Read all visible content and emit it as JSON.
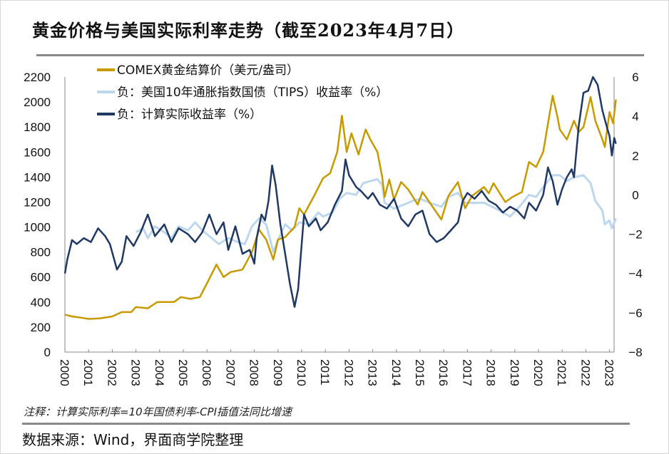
{
  "title": "黄金价格与美国实际利率走势（截至2023年4月7日）",
  "note": "注释：计算实际利率=10年国债利率-CPI插值法同比增速",
  "source": "数据来源：Wind，界面商学院整理",
  "chart_data": {
    "type": "line",
    "title": "黄金价格与美国实际利率走势（截至2023年4月7日）",
    "x_ticks": [
      "2000",
      "2001",
      "2002",
      "2003",
      "2004",
      "2005",
      "2006",
      "2007",
      "2008",
      "2009",
      "2010",
      "2011",
      "2012",
      "2013",
      "2014",
      "2015",
      "2016",
      "2017",
      "2018",
      "2019",
      "2020",
      "2021",
      "2022",
      "2023"
    ],
    "y_left": {
      "ylim": [
        0,
        2200
      ],
      "ticks": [
        "0",
        "200",
        "400",
        "600",
        "800",
        "1000",
        "1200",
        "1400",
        "1600",
        "1800",
        "2000",
        "2200"
      ]
    },
    "y_right": {
      "ylim": [
        -8,
        6
      ],
      "ticks": [
        "-8",
        "-6",
        "-4",
        "-2",
        "0",
        "2",
        "4",
        "6"
      ]
    },
    "legend_placement": "top-left",
    "series": [
      {
        "name": "COMEX黄金结算价（美元/盎司）",
        "axis": "left",
        "color": "#C89A00",
        "points": [
          [
            2000,
            300
          ],
          [
            2000.3,
            285
          ],
          [
            2000.7,
            275
          ],
          [
            2001,
            265
          ],
          [
            2001.5,
            270
          ],
          [
            2002,
            285
          ],
          [
            2002.4,
            320
          ],
          [
            2002.8,
            320
          ],
          [
            2003,
            360
          ],
          [
            2003.5,
            350
          ],
          [
            2003.9,
            400
          ],
          [
            2004.3,
            400
          ],
          [
            2004.6,
            400
          ],
          [
            2004.9,
            440
          ],
          [
            2005.3,
            425
          ],
          [
            2005.7,
            440
          ],
          [
            2006,
            550
          ],
          [
            2006.4,
            700
          ],
          [
            2006.7,
            600
          ],
          [
            2007,
            640
          ],
          [
            2007.5,
            660
          ],
          [
            2007.9,
            800
          ],
          [
            2008.2,
            980
          ],
          [
            2008.5,
            900
          ],
          [
            2008.8,
            740
          ],
          [
            2009,
            900
          ],
          [
            2009.3,
            920
          ],
          [
            2009.7,
            1000
          ],
          [
            2009.9,
            1150
          ],
          [
            2010.1,
            1100
          ],
          [
            2010.5,
            1240
          ],
          [
            2010.9,
            1390
          ],
          [
            2011.2,
            1430
          ],
          [
            2011.5,
            1600
          ],
          [
            2011.7,
            1890
          ],
          [
            2011.9,
            1600
          ],
          [
            2012.1,
            1750
          ],
          [
            2012.4,
            1580
          ],
          [
            2012.7,
            1780
          ],
          [
            2012.9,
            1700
          ],
          [
            2013.2,
            1600
          ],
          [
            2013.4,
            1400
          ],
          [
            2013.5,
            1240
          ],
          [
            2013.7,
            1380
          ],
          [
            2013.9,
            1220
          ],
          [
            2014.2,
            1360
          ],
          [
            2014.5,
            1300
          ],
          [
            2014.9,
            1180
          ],
          [
            2015.1,
            1280
          ],
          [
            2015.5,
            1170
          ],
          [
            2015.9,
            1060
          ],
          [
            2016.2,
            1250
          ],
          [
            2016.6,
            1360
          ],
          [
            2016.9,
            1150
          ],
          [
            2017.2,
            1250
          ],
          [
            2017.7,
            1320
          ],
          [
            2017.9,
            1270
          ],
          [
            2018.1,
            1350
          ],
          [
            2018.6,
            1200
          ],
          [
            2018.9,
            1240
          ],
          [
            2019.3,
            1280
          ],
          [
            2019.6,
            1520
          ],
          [
            2019.9,
            1480
          ],
          [
            2020.2,
            1600
          ],
          [
            2020.6,
            2050
          ],
          [
            2020.8,
            1880
          ],
          [
            2020.9,
            1780
          ],
          [
            2021.2,
            1700
          ],
          [
            2021.5,
            1850
          ],
          [
            2021.7,
            1760
          ],
          [
            2021.9,
            1800
          ],
          [
            2022.2,
            2040
          ],
          [
            2022.4,
            1850
          ],
          [
            2022.7,
            1700
          ],
          [
            2022.8,
            1640
          ],
          [
            2023,
            1920
          ],
          [
            2023.15,
            1830
          ],
          [
            2023.27,
            2020
          ]
        ]
      },
      {
        "name": "负：美国10年通胀指数国债（TIPS）收益率（%）",
        "axis": "right",
        "color": "#BDD7EE",
        "points": [
          [
            2003,
            -1.9
          ],
          [
            2003.3,
            -1.7
          ],
          [
            2003.5,
            -2.2
          ],
          [
            2003.8,
            -1.6
          ],
          [
            2004.2,
            -1.9
          ],
          [
            2004.5,
            -2.2
          ],
          [
            2004.8,
            -1.6
          ],
          [
            2005.2,
            -1.8
          ],
          [
            2005.5,
            -1.4
          ],
          [
            2005.8,
            -1.8
          ],
          [
            2006.2,
            -2.2
          ],
          [
            2006.5,
            -2.5
          ],
          [
            2006.9,
            -2.2
          ],
          [
            2007.3,
            -2.4
          ],
          [
            2007.6,
            -2.5
          ],
          [
            2007.9,
            -1.6
          ],
          [
            2008.2,
            -1.2
          ],
          [
            2008.5,
            -1.5
          ],
          [
            2008.8,
            -2.9
          ],
          [
            2009,
            -2.3
          ],
          [
            2009.3,
            -1.5
          ],
          [
            2009.6,
            -1.8
          ],
          [
            2009.9,
            -1.4
          ],
          [
            2010.3,
            -1.5
          ],
          [
            2010.7,
            -0.9
          ],
          [
            2010.9,
            -1.1
          ],
          [
            2011.3,
            -0.9
          ],
          [
            2011.6,
            -0.2
          ],
          [
            2011.9,
            0.1
          ],
          [
            2012.3,
            0.0
          ],
          [
            2012.6,
            0.6
          ],
          [
            2012.9,
            0.7
          ],
          [
            2013.2,
            0.8
          ],
          [
            2013.4,
            0.5
          ],
          [
            2013.5,
            -0.4
          ],
          [
            2013.9,
            -0.7
          ],
          [
            2014.3,
            -0.5
          ],
          [
            2014.7,
            -0.3
          ],
          [
            2015,
            -0.2
          ],
          [
            2015.4,
            -0.4
          ],
          [
            2015.9,
            -0.6
          ],
          [
            2016.2,
            -0.1
          ],
          [
            2016.6,
            0.1
          ],
          [
            2016.9,
            -0.4
          ],
          [
            2017.3,
            -0.4
          ],
          [
            2017.7,
            -0.4
          ],
          [
            2018.2,
            -0.7
          ],
          [
            2018.8,
            -1.1
          ],
          [
            2019.2,
            -0.6
          ],
          [
            2019.6,
            0.0
          ],
          [
            2019.9,
            -0.1
          ],
          [
            2020.2,
            0.4
          ],
          [
            2020.6,
            1.0
          ],
          [
            2020.9,
            1.0
          ],
          [
            2021.2,
            0.7
          ],
          [
            2021.5,
            0.9
          ],
          [
            2021.9,
            1.0
          ],
          [
            2022.2,
            0.6
          ],
          [
            2022.4,
            -0.3
          ],
          [
            2022.7,
            -0.8
          ],
          [
            2022.8,
            -1.5
          ],
          [
            2023,
            -1.3
          ],
          [
            2023.1,
            -1.7
          ],
          [
            2023.27,
            -1.2
          ]
        ]
      },
      {
        "name": "负：计算实际收益率（%）",
        "axis": "right",
        "color": "#1F3864",
        "points": [
          [
            2000,
            -4.0
          ],
          [
            2000.1,
            -3.3
          ],
          [
            2000.3,
            -2.3
          ],
          [
            2000.5,
            -2.5
          ],
          [
            2000.8,
            -2.2
          ],
          [
            2001.1,
            -2.4
          ],
          [
            2001.4,
            -1.7
          ],
          [
            2001.7,
            -2.1
          ],
          [
            2001.9,
            -2.5
          ],
          [
            2002.2,
            -3.8
          ],
          [
            2002.4,
            -3.4
          ],
          [
            2002.6,
            -2.1
          ],
          [
            2002.9,
            -2.6
          ],
          [
            2003.2,
            -1.9
          ],
          [
            2003.5,
            -1.0
          ],
          [
            2003.8,
            -2.1
          ],
          [
            2004.2,
            -1.5
          ],
          [
            2004.5,
            -2.4
          ],
          [
            2004.8,
            -1.7
          ],
          [
            2005.2,
            -2.0
          ],
          [
            2005.5,
            -2.4
          ],
          [
            2005.8,
            -1.9
          ],
          [
            2006.1,
            -1.0
          ],
          [
            2006.4,
            -2.0
          ],
          [
            2006.7,
            -1.4
          ],
          [
            2006.9,
            -2.8
          ],
          [
            2007.2,
            -1.6
          ],
          [
            2007.5,
            -3.0
          ],
          [
            2007.8,
            -2.8
          ],
          [
            2008,
            -3.5
          ],
          [
            2008.1,
            -2.2
          ],
          [
            2008.3,
            -1.0
          ],
          [
            2008.45,
            -1.3
          ],
          [
            2008.6,
            -0.3
          ],
          [
            2008.75,
            1.5
          ],
          [
            2008.9,
            0.5
          ],
          [
            2009.1,
            -1.5
          ],
          [
            2009.3,
            -3.0
          ],
          [
            2009.5,
            -4.5
          ],
          [
            2009.7,
            -5.7
          ],
          [
            2009.85,
            -4.8
          ],
          [
            2010,
            -2.5
          ],
          [
            2010.1,
            -1.0
          ],
          [
            2010.3,
            -1.6
          ],
          [
            2010.6,
            -1.2
          ],
          [
            2010.8,
            -1.8
          ],
          [
            2011.1,
            -1.4
          ],
          [
            2011.4,
            -0.5
          ],
          [
            2011.7,
            0.2
          ],
          [
            2011.85,
            1.8
          ],
          [
            2012,
            1.0
          ],
          [
            2012.3,
            0.4
          ],
          [
            2012.5,
            0.2
          ],
          [
            2012.8,
            -0.2
          ],
          [
            2013,
            0.1
          ],
          [
            2013.3,
            -0.5
          ],
          [
            2013.6,
            -0.7
          ],
          [
            2013.9,
            -0.2
          ],
          [
            2014.2,
            -1.2
          ],
          [
            2014.5,
            -1.6
          ],
          [
            2014.8,
            -1.0
          ],
          [
            2015.1,
            -0.8
          ],
          [
            2015.4,
            -2.0
          ],
          [
            2015.7,
            -2.4
          ],
          [
            2016,
            -2.2
          ],
          [
            2016.3,
            -1.8
          ],
          [
            2016.6,
            -1.4
          ],
          [
            2016.8,
            -0.3
          ],
          [
            2017,
            0.1
          ],
          [
            2017.3,
            -0.2
          ],
          [
            2017.6,
            0.2
          ],
          [
            2017.9,
            -0.3
          ],
          [
            2018.2,
            -0.5
          ],
          [
            2018.5,
            -0.9
          ],
          [
            2018.8,
            -0.6
          ],
          [
            2019.1,
            -0.8
          ],
          [
            2019.4,
            -1.2
          ],
          [
            2019.6,
            -0.4
          ],
          [
            2019.9,
            -0.8
          ],
          [
            2020.2,
            0.0
          ],
          [
            2020.4,
            1.4
          ],
          [
            2020.6,
            0.7
          ],
          [
            2020.8,
            -0.5
          ],
          [
            2021,
            0.3
          ],
          [
            2021.2,
            0.9
          ],
          [
            2021.4,
            1.3
          ],
          [
            2021.5,
            0.9
          ],
          [
            2021.7,
            3.5
          ],
          [
            2021.9,
            5.2
          ],
          [
            2022.1,
            5.3
          ],
          [
            2022.3,
            6.0
          ],
          [
            2022.5,
            5.6
          ],
          [
            2022.7,
            4.3
          ],
          [
            2022.9,
            3.4
          ],
          [
            2023,
            3.0
          ],
          [
            2023.1,
            2.0
          ],
          [
            2023.2,
            2.9
          ],
          [
            2023.27,
            2.6
          ]
        ]
      }
    ]
  }
}
